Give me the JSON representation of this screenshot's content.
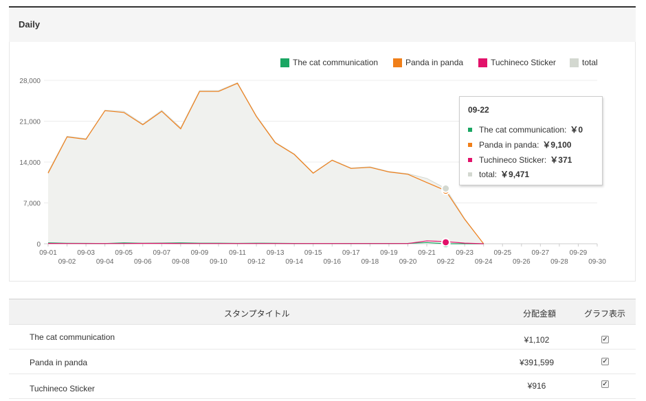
{
  "panel": {
    "title": "Daily"
  },
  "chart_data": {
    "type": "area",
    "x": [
      "09-01",
      "09-02",
      "09-03",
      "09-04",
      "09-05",
      "09-06",
      "09-07",
      "09-08",
      "09-09",
      "09-10",
      "09-11",
      "09-12",
      "09-13",
      "09-14",
      "09-15",
      "09-16",
      "09-17",
      "09-18",
      "09-19",
      "09-20",
      "09-21",
      "09-22",
      "09-23",
      "09-24",
      "09-25",
      "09-26",
      "09-27",
      "09-28",
      "09-29",
      "09-30"
    ],
    "yticks": [
      "0",
      "7,000",
      "14,000",
      "21,000",
      "28,000"
    ],
    "ylim": [
      0,
      28000
    ],
    "grid": true,
    "legend_position": "top-right",
    "series": [
      {
        "name": "The cat communication",
        "color": "#1aa663",
        "values": [
          150,
          80,
          60,
          40,
          150,
          80,
          110,
          150,
          90,
          90,
          60,
          90,
          70,
          50,
          40,
          40,
          50,
          50,
          50,
          60,
          200,
          0,
          0,
          0,
          null,
          null,
          null,
          null,
          null,
          null
        ]
      },
      {
        "name": "Panda in panda",
        "color": "#f07f19",
        "values": [
          12100,
          18300,
          17900,
          22800,
          22500,
          20400,
          22700,
          19700,
          26100,
          26100,
          27500,
          21800,
          17300,
          15300,
          12100,
          14300,
          12900,
          13100,
          12300,
          11900,
          10500,
          9100,
          4200,
          0,
          null,
          null,
          null,
          null,
          null,
          null
        ]
      },
      {
        "name": "Tuchineco Sticker",
        "color": "#e2126a",
        "values": [
          50,
          40,
          40,
          40,
          40,
          60,
          60,
          40,
          40,
          40,
          40,
          40,
          40,
          40,
          40,
          40,
          40,
          40,
          40,
          40,
          500,
          371,
          100,
          0,
          null,
          null,
          null,
          null,
          null,
          null
        ]
      },
      {
        "name": "total",
        "color": "#d3d8d0",
        "values": [
          12300,
          18420,
          18000,
          22880,
          22690,
          20540,
          22870,
          19890,
          26230,
          26230,
          27600,
          21930,
          17410,
          15390,
          12180,
          14380,
          12990,
          13190,
          12390,
          12000,
          11200,
          9471,
          4300,
          0,
          null,
          null,
          null,
          null,
          null,
          null
        ]
      }
    ]
  },
  "tooltip": {
    "date": "09-22",
    "rows": [
      {
        "label": "The cat communication:",
        "value": "￥0",
        "color": "#1aa663"
      },
      {
        "label": "Panda in panda:",
        "value": "￥9,100",
        "color": "#f07f19"
      },
      {
        "label": "Tuchineco Sticker:",
        "value": "￥371",
        "color": "#e2126a"
      },
      {
        "label": "total:",
        "value": "￥9,471",
        "color": "#d3d8d0"
      }
    ]
  },
  "table": {
    "headers": {
      "title": "スタンプタイトル",
      "amount": "分配金額",
      "graph": "グラフ表示"
    },
    "rows": [
      {
        "title": "The cat communication",
        "amount": "¥1,102",
        "checked": true
      },
      {
        "title": "Panda in panda",
        "amount": "¥391,599",
        "checked": true
      },
      {
        "title": "Tuchineco Sticker",
        "amount": "¥916",
        "checked": true
      }
    ]
  }
}
